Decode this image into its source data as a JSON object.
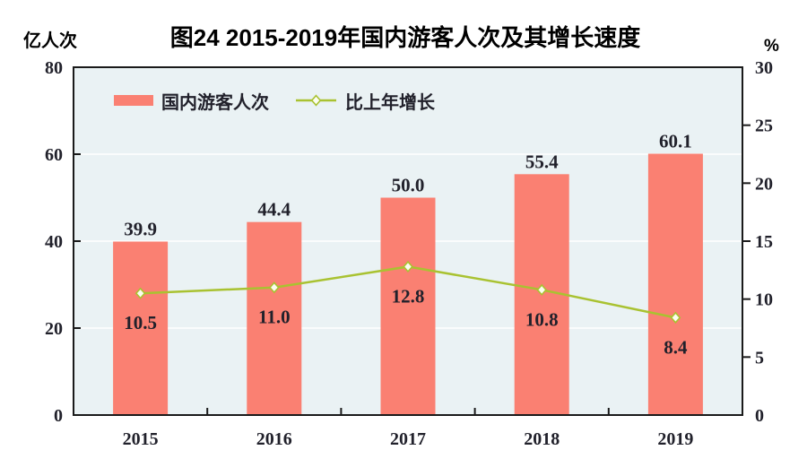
{
  "title": "图24  2015-2019年国内游客人次及其增长速度",
  "left_axis_unit": "亿人次",
  "right_axis_unit": "%",
  "legend": {
    "bar_label": "国内游客人次",
    "line_label": "比上年增长"
  },
  "colors": {
    "bar": "#FA8072",
    "line": "#A9C231",
    "marker_fill": "#FCFDF0",
    "plot_bg": "#EAF2F4",
    "grid": "#FFFFFF",
    "axis": "#1A1A1A",
    "text": "#21212B"
  },
  "chart_data": {
    "type": "bar+line",
    "title": "图24  2015-2019年国内游客人次及其增长速度",
    "categories": [
      "2015",
      "2016",
      "2017",
      "2018",
      "2019"
    ],
    "series": [
      {
        "name": "国内游客人次",
        "type": "bar",
        "axis": "left",
        "unit": "亿人次",
        "values": [
          39.9,
          44.4,
          50.0,
          55.4,
          60.1
        ],
        "labels": [
          "39.9",
          "44.4",
          "50.0",
          "55.4",
          "60.1"
        ]
      },
      {
        "name": "比上年增长",
        "type": "line",
        "axis": "right",
        "unit": "%",
        "values": [
          10.5,
          11.0,
          12.8,
          10.8,
          8.4
        ],
        "labels": [
          "10.5",
          "11.0",
          "12.8",
          "10.8",
          "8.4"
        ]
      }
    ],
    "left_axis": {
      "unit": "亿人次",
      "min": 0,
      "max": 80,
      "ticks": [
        0,
        20,
        40,
        60,
        80
      ]
    },
    "right_axis": {
      "unit": "%",
      "min": 0,
      "max": 30,
      "ticks": [
        0,
        5,
        10,
        15,
        20,
        25,
        30
      ]
    },
    "grid": {
      "horizontal": true,
      "at_left_values": [
        20,
        40,
        60
      ]
    },
    "legend_position": "top-left-inside"
  }
}
